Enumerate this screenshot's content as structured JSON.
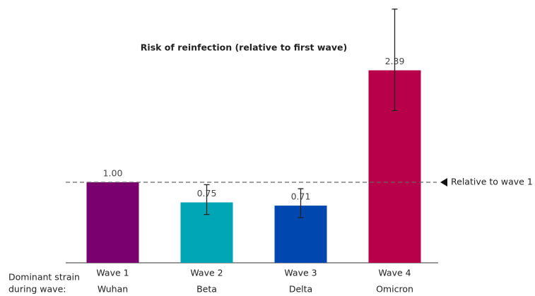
{
  "chart_data": {
    "type": "bar",
    "title": "Risk of reinfection (relative to first wave)",
    "categories": [
      "Wave 1",
      "Wave 2",
      "Wave 3",
      "Wave 4"
    ],
    "row_label": [
      "Dominant strain",
      "during wave:"
    ],
    "strains": [
      "Wuhan",
      "Beta",
      "Delta",
      "Omicron"
    ],
    "values": [
      1,
      0.75,
      0.71,
      2.39
    ],
    "value_labels": [
      "1.00",
      "0.75",
      "0.71",
      "2.39"
    ],
    "ci_low": [
      null,
      0.6,
      0.56,
      1.89
    ],
    "ci_high": [
      null,
      0.97,
      0.92,
      3.15
    ],
    "colors": [
      "#7b006f",
      "#00a5b6",
      "#0048b0",
      "#b8004a"
    ],
    "reference": {
      "value": 1,
      "label": "Relative to wave 1"
    },
    "ylim": [
      0,
      3.2
    ]
  }
}
